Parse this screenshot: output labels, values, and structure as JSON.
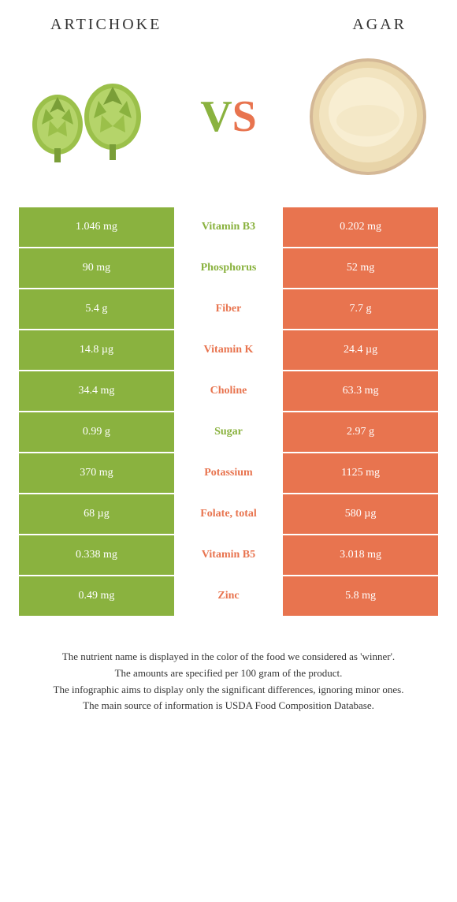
{
  "titles": {
    "left": "Artichoke",
    "right": "Agar"
  },
  "vs": {
    "v": "V",
    "s": "S"
  },
  "colors": {
    "green": "#8ab23f",
    "orange": "#e8744f"
  },
  "rows": [
    {
      "left": "1.046 mg",
      "mid": "Vitamin B3",
      "right": "0.202 mg",
      "winner": "green"
    },
    {
      "left": "90 mg",
      "mid": "Phosphorus",
      "right": "52 mg",
      "winner": "green"
    },
    {
      "left": "5.4 g",
      "mid": "Fiber",
      "right": "7.7 g",
      "winner": "orange"
    },
    {
      "left": "14.8 µg",
      "mid": "Vitamin K",
      "right": "24.4 µg",
      "winner": "orange"
    },
    {
      "left": "34.4 mg",
      "mid": "Choline",
      "right": "63.3 mg",
      "winner": "orange"
    },
    {
      "left": "0.99 g",
      "mid": "Sugar",
      "right": "2.97 g",
      "winner": "green"
    },
    {
      "left": "370 mg",
      "mid": "Potassium",
      "right": "1125 mg",
      "winner": "orange"
    },
    {
      "left": "68 µg",
      "mid": "Folate, total",
      "right": "580 µg",
      "winner": "orange"
    },
    {
      "left": "0.338 mg",
      "mid": "Vitamin B5",
      "right": "3.018 mg",
      "winner": "orange"
    },
    {
      "left": "0.49 mg",
      "mid": "Zinc",
      "right": "5.8 mg",
      "winner": "orange"
    }
  ],
  "footer": [
    "The nutrient name is displayed in the color of the food we considered as 'winner'.",
    "The amounts are specified per 100 gram of the product.",
    "The infographic aims to display only the significant differences, ignoring minor ones.",
    "The main source of information is USDA Food Composition Database."
  ]
}
